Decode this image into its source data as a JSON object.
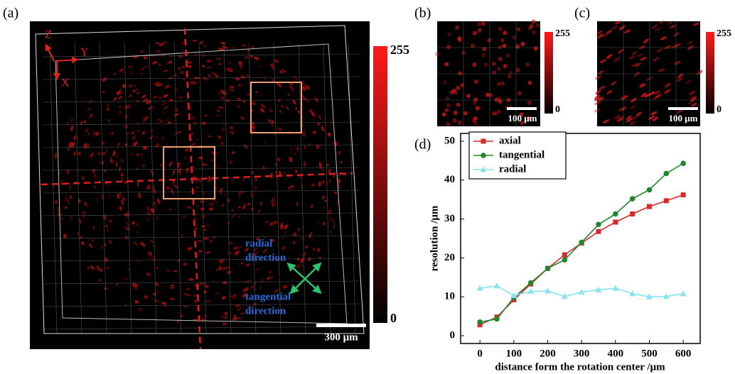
{
  "figure": {
    "labels": {
      "a": "(a)",
      "b": "(b)",
      "c": "(c)",
      "d": "(d)"
    }
  },
  "panel_a": {
    "axis_labels": [
      "Z",
      "Y",
      "X"
    ],
    "colorbar_max": "255",
    "colorbar_min": "0",
    "scale_bar": "300 μm",
    "radial_direction": [
      "radial",
      "direction"
    ],
    "tangential_direction": [
      "tangential",
      "direction"
    ]
  },
  "panel_b": {
    "colorbar_max": "255",
    "colorbar_min": "0",
    "scale_bar": "100 μm"
  },
  "panel_c": {
    "colorbar_max": "255",
    "colorbar_min": "0",
    "scale_bar": "100 μm"
  },
  "chart_data": {
    "type": "line",
    "x_label": "distance form the rotation center /μm",
    "y_label": "resolution /μm",
    "x": [
      0,
      50,
      100,
      150,
      200,
      250,
      300,
      350,
      400,
      450,
      500,
      550,
      600
    ],
    "series": [
      {
        "name": "axial",
        "color": "#d42a2a",
        "marker": "square",
        "values": [
          2.8,
          4.8,
          9.2,
          13.3,
          17.3,
          20.8,
          23.8,
          26.8,
          29.2,
          31.3,
          33.2,
          34.7,
          36.2
        ]
      },
      {
        "name": "tangential",
        "color": "#23862e",
        "marker": "circle",
        "values": [
          3.5,
          4.3,
          9.8,
          13.6,
          17.3,
          19.5,
          24.0,
          28.6,
          31.3,
          35.2,
          37.5,
          41.7,
          44.3
        ]
      },
      {
        "name": "radial",
        "color": "#86e4ec",
        "marker": "triangle",
        "values": [
          12.2,
          12.8,
          10.3,
          11.4,
          11.5,
          10.1,
          11.2,
          11.8,
          12.2,
          10.8,
          10.0,
          10.1,
          10.8
        ]
      }
    ],
    "xlim": [
      -57,
      650
    ],
    "ylim": [
      -2,
      52
    ],
    "xticks": [
      0,
      100,
      200,
      300,
      400,
      500,
      600
    ],
    "yticks": [
      0,
      10,
      20,
      30,
      40,
      50
    ],
    "legend": "upper left"
  }
}
